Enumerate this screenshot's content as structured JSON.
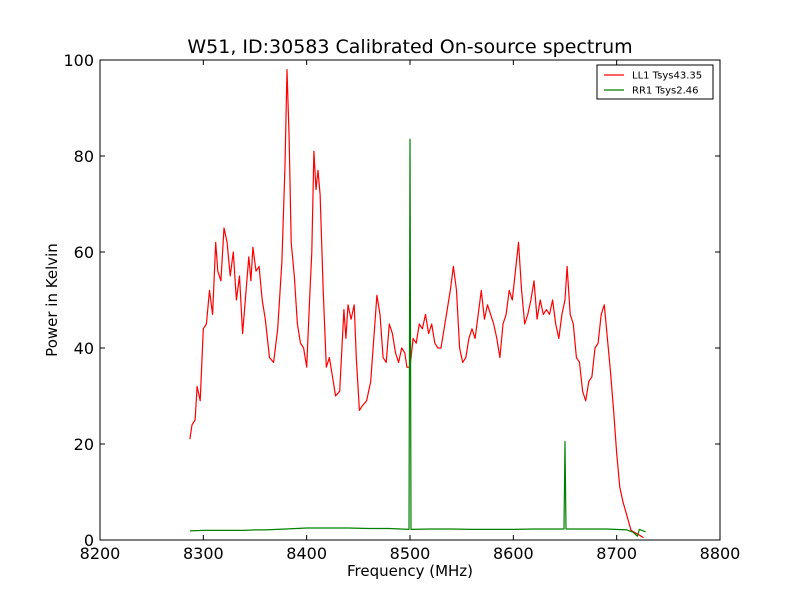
{
  "chart_data": {
    "type": "line",
    "title": "W51, ID:30583 Calibrated On-source spectrum",
    "xlabel": "Frequency (MHz)",
    "ylabel": "Power in Kelvin",
    "xlim": [
      8200,
      8800
    ],
    "ylim": [
      0,
      100
    ],
    "xticks": [
      8200,
      8300,
      8400,
      8500,
      8600,
      8700,
      8800
    ],
    "yticks": [
      0,
      20,
      40,
      60,
      80,
      100
    ],
    "grid": false,
    "legend_position": "top-right",
    "series": [
      {
        "name": "LL1 Tsys43.35",
        "color": "#ff0000",
        "points": [
          [
            8287,
            21
          ],
          [
            8289,
            24
          ],
          [
            8292,
            25
          ],
          [
            8294,
            32
          ],
          [
            8297,
            29
          ],
          [
            8300,
            44
          ],
          [
            8303,
            45
          ],
          [
            8306,
            52
          ],
          [
            8309,
            47
          ],
          [
            8312,
            62
          ],
          [
            8314,
            56
          ],
          [
            8317,
            54
          ],
          [
            8320,
            65
          ],
          [
            8323,
            62
          ],
          [
            8326,
            55
          ],
          [
            8329,
            60
          ],
          [
            8332,
            50
          ],
          [
            8335,
            55
          ],
          [
            8338,
            43
          ],
          [
            8341,
            51
          ],
          [
            8344,
            59
          ],
          [
            8346,
            54
          ],
          [
            8348,
            61
          ],
          [
            8351,
            56
          ],
          [
            8354,
            57
          ],
          [
            8357,
            50
          ],
          [
            8360,
            46
          ],
          [
            8364,
            38
          ],
          [
            8368,
            37
          ],
          [
            8372,
            44
          ],
          [
            8376,
            58
          ],
          [
            8379,
            78
          ],
          [
            8381,
            98
          ],
          [
            8383,
            84
          ],
          [
            8385,
            62
          ],
          [
            8388,
            55
          ],
          [
            8391,
            45
          ],
          [
            8394,
            41
          ],
          [
            8397,
            40
          ],
          [
            8400,
            36
          ],
          [
            8403,
            51
          ],
          [
            8405,
            60
          ],
          [
            8407,
            81
          ],
          [
            8409,
            73
          ],
          [
            8411,
            77
          ],
          [
            8413,
            72
          ],
          [
            8416,
            52
          ],
          [
            8419,
            36
          ],
          [
            8422,
            38
          ],
          [
            8425,
            34
          ],
          [
            8428,
            30
          ],
          [
            8432,
            31
          ],
          [
            8436,
            48
          ],
          [
            8438,
            42
          ],
          [
            8440,
            49
          ],
          [
            8443,
            46
          ],
          [
            8446,
            49
          ],
          [
            8448,
            38
          ],
          [
            8451,
            27
          ],
          [
            8454,
            28
          ],
          [
            8458,
            29
          ],
          [
            8462,
            33
          ],
          [
            8465,
            42
          ],
          [
            8468,
            51
          ],
          [
            8471,
            47
          ],
          [
            8474,
            38
          ],
          [
            8477,
            37
          ],
          [
            8480,
            45
          ],
          [
            8483,
            43
          ],
          [
            8486,
            39
          ],
          [
            8489,
            37
          ],
          [
            8492,
            40
          ],
          [
            8495,
            39
          ],
          [
            8497,
            36
          ],
          [
            8500,
            36
          ],
          [
            8503,
            42
          ],
          [
            8506,
            41
          ],
          [
            8509,
            45
          ],
          [
            8512,
            44
          ],
          [
            8515,
            47
          ],
          [
            8518,
            43
          ],
          [
            8521,
            45
          ],
          [
            8524,
            41
          ],
          [
            8527,
            40
          ],
          [
            8530,
            40
          ],
          [
            8533,
            44
          ],
          [
            8536,
            48
          ],
          [
            8539,
            52
          ],
          [
            8542,
            57
          ],
          [
            8545,
            52
          ],
          [
            8548,
            40
          ],
          [
            8551,
            37
          ],
          [
            8554,
            38
          ],
          [
            8557,
            42
          ],
          [
            8560,
            44
          ],
          [
            8563,
            42
          ],
          [
            8566,
            47
          ],
          [
            8569,
            52
          ],
          [
            8572,
            46
          ],
          [
            8575,
            49
          ],
          [
            8578,
            47
          ],
          [
            8581,
            45
          ],
          [
            8584,
            42
          ],
          [
            8587,
            38
          ],
          [
            8590,
            45
          ],
          [
            8593,
            47
          ],
          [
            8596,
            52
          ],
          [
            8599,
            50
          ],
          [
            8602,
            56
          ],
          [
            8605,
            62
          ],
          [
            8608,
            52
          ],
          [
            8611,
            45
          ],
          [
            8614,
            47
          ],
          [
            8617,
            50
          ],
          [
            8620,
            54
          ],
          [
            8623,
            46
          ],
          [
            8626,
            50
          ],
          [
            8629,
            47
          ],
          [
            8632,
            48
          ],
          [
            8635,
            47
          ],
          [
            8638,
            50
          ],
          [
            8641,
            45
          ],
          [
            8644,
            42
          ],
          [
            8647,
            47
          ],
          [
            8650,
            50
          ],
          [
            8652,
            57
          ],
          [
            8655,
            47
          ],
          [
            8658,
            45
          ],
          [
            8661,
            38
          ],
          [
            8664,
            37
          ],
          [
            8667,
            31
          ],
          [
            8670,
            29
          ],
          [
            8673,
            33
          ],
          [
            8676,
            34
          ],
          [
            8679,
            40
          ],
          [
            8682,
            41
          ],
          [
            8685,
            47
          ],
          [
            8688,
            49
          ],
          [
            8691,
            42
          ],
          [
            8694,
            35
          ],
          [
            8697,
            27
          ],
          [
            8700,
            18
          ],
          [
            8703,
            11
          ],
          [
            8706,
            8
          ],
          [
            8710,
            5
          ],
          [
            8714,
            2
          ],
          [
            8718,
            1.5
          ],
          [
            8722,
            1
          ],
          [
            8726,
            0.5
          ]
        ]
      },
      {
        "name": "RR1 Tsys2.46",
        "color": "#008000",
        "points": [
          [
            8287,
            1.9
          ],
          [
            8300,
            2.0
          ],
          [
            8320,
            2.0
          ],
          [
            8340,
            2.0
          ],
          [
            8350,
            2.1
          ],
          [
            8360,
            2.1
          ],
          [
            8380,
            2.3
          ],
          [
            8400,
            2.5
          ],
          [
            8420,
            2.5
          ],
          [
            8440,
            2.5
          ],
          [
            8460,
            2.4
          ],
          [
            8480,
            2.4
          ],
          [
            8499,
            2.2
          ],
          [
            8500,
            83.5
          ],
          [
            8501,
            2.2
          ],
          [
            8520,
            2.3
          ],
          [
            8540,
            2.3
          ],
          [
            8560,
            2.2
          ],
          [
            8580,
            2.2
          ],
          [
            8600,
            2.2
          ],
          [
            8620,
            2.3
          ],
          [
            8640,
            2.3
          ],
          [
            8649,
            2.3
          ],
          [
            8650,
            20.5
          ],
          [
            8651,
            2.3
          ],
          [
            8670,
            2.3
          ],
          [
            8690,
            2.3
          ],
          [
            8710,
            2.1
          ],
          [
            8716,
            1.6
          ],
          [
            8720,
            0.8
          ],
          [
            8722,
            2.2
          ],
          [
            8728,
            1.7
          ]
        ]
      }
    ]
  }
}
